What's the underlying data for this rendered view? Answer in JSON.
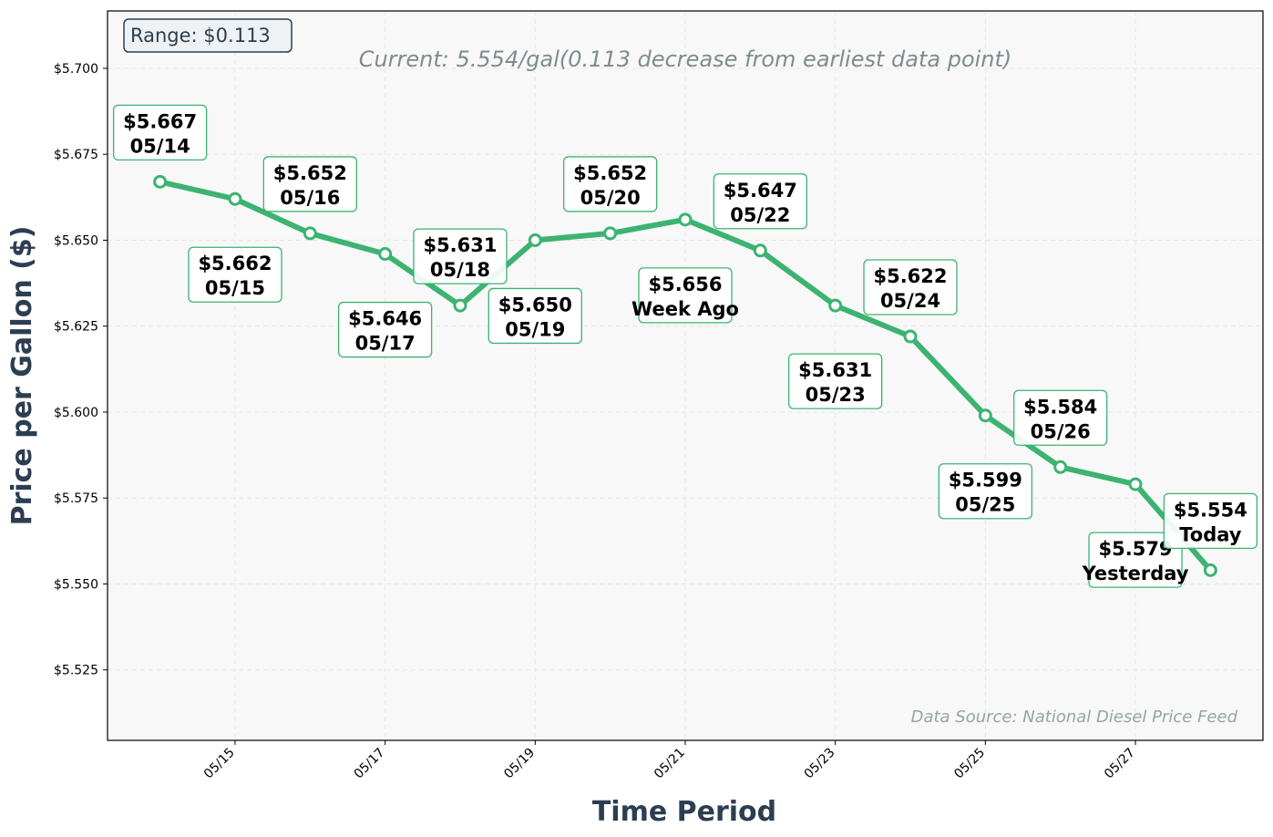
{
  "colors": {
    "line": "#3cb371",
    "plot_bg": "#f8f8f8",
    "label_border": "#3cb371",
    "axis_title": "#2c3e50",
    "grid": "#e6e6e6"
  },
  "range_badge": "Range: $0.113",
  "subtitle": "Current: 5.554/gal(0.113 decrease from earliest data point)",
  "source_note": "Data Source: National Diesel Price Feed",
  "chart_data": {
    "type": "line",
    "title": "",
    "xlabel": "Time Period",
    "ylabel": "Price per Gallon ($)",
    "ylim": [
      5.5045,
      5.7167
    ],
    "xlim_days": [
      13.3,
      28.7
    ],
    "grid": true,
    "y_ticks": [
      5.525,
      5.55,
      5.575,
      5.6,
      5.625,
      5.65,
      5.675,
      5.7
    ],
    "y_tick_labels": [
      "$5.525",
      "$5.550",
      "$5.575",
      "$5.600",
      "$5.625",
      "$5.650",
      "$5.675",
      "$5.700"
    ],
    "x_ticks": [
      15,
      17,
      19,
      21,
      23,
      25,
      27
    ],
    "x_tick_labels": [
      "05/15",
      "05/17",
      "05/19",
      "05/21",
      "05/23",
      "05/25",
      "05/27"
    ],
    "series": [
      {
        "x": [
          14,
          15,
          16,
          17,
          18,
          19,
          20,
          21,
          22,
          23,
          24,
          25,
          26,
          27,
          28
        ],
        "y": [
          5.667,
          5.662,
          5.652,
          5.646,
          5.631,
          5.65,
          5.652,
          5.656,
          5.647,
          5.631,
          5.622,
          5.599,
          5.584,
          5.579,
          5.554
        ]
      }
    ],
    "annotations": [
      {
        "price": "$5.667",
        "date": "05/14",
        "pos": "above"
      },
      {
        "price": "$5.662",
        "date": "05/15",
        "pos": "below"
      },
      {
        "price": "$5.652",
        "date": "05/16",
        "pos": "above"
      },
      {
        "price": "$5.646",
        "date": "05/17",
        "pos": "below"
      },
      {
        "price": "$5.631",
        "date": "05/18",
        "pos": "above"
      },
      {
        "price": "$5.650",
        "date": "05/19",
        "pos": "below"
      },
      {
        "price": "$5.652",
        "date": "05/20",
        "pos": "above"
      },
      {
        "price": "$5.656",
        "date": "Week Ago",
        "pos": "below"
      },
      {
        "price": "$5.647",
        "date": "05/22",
        "pos": "above"
      },
      {
        "price": "$5.631",
        "date": "05/23",
        "pos": "below"
      },
      {
        "price": "$5.622",
        "date": "05/24",
        "pos": "above"
      },
      {
        "price": "$5.599",
        "date": "05/25",
        "pos": "below"
      },
      {
        "price": "$5.584",
        "date": "05/26",
        "pos": "above"
      },
      {
        "price": "$5.579",
        "date": "Yesterday",
        "pos": "below"
      },
      {
        "price": "$5.554",
        "date": "Today",
        "pos": "above"
      }
    ]
  }
}
